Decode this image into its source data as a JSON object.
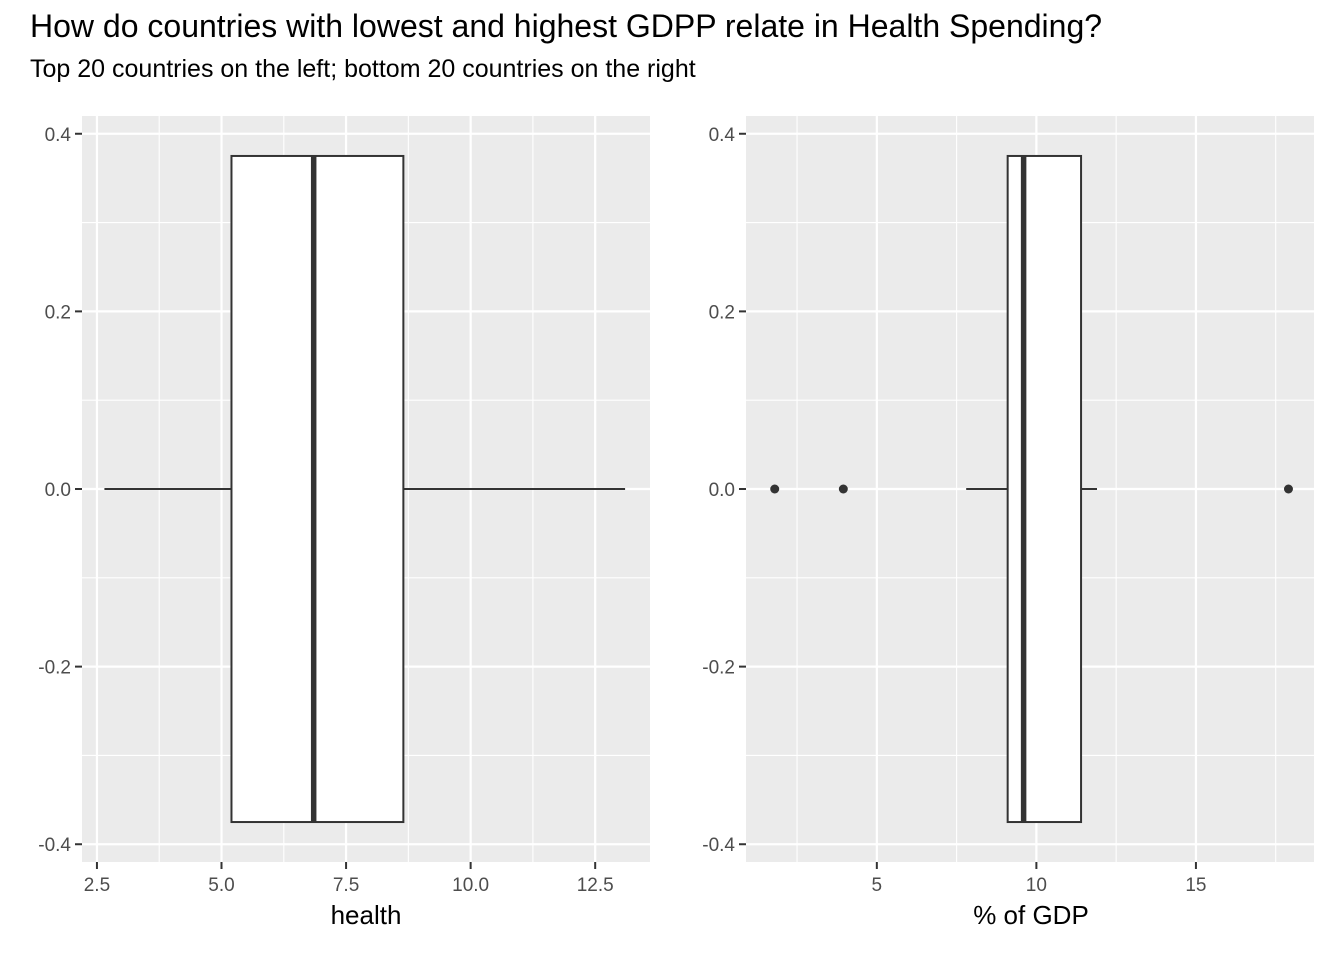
{
  "title": "How do countries with lowest and highest GDPP relate in Health Spending?",
  "subtitle": "Top 20 countries on the left; bottom 20 countries on the right",
  "colors": {
    "panel_background": "#ebebeb",
    "grid": "#ffffff",
    "box_fill": "#ffffff",
    "box_line": "#333333",
    "tick_text": "#4d4d4d"
  },
  "chart_data": [
    {
      "type": "boxplot",
      "xlabel": "health",
      "ylabel": "",
      "xlim": [
        2.2,
        13.6
      ],
      "ylim": [
        -0.42,
        0.42
      ],
      "x_ticks": [
        2.5,
        5.0,
        7.5,
        10.0,
        12.5
      ],
      "x_tick_labels": [
        "2.5",
        "5.0",
        "7.5",
        "10.0",
        "12.5"
      ],
      "y_ticks": [
        0.4,
        0.2,
        0.0,
        -0.2,
        -0.4
      ],
      "y_tick_labels": [
        "0.4",
        "0.2",
        "0.0",
        "-0.2",
        "-0.4"
      ],
      "grid": true,
      "box": {
        "whisker_low": 2.65,
        "q1": 5.2,
        "median": 6.85,
        "q3": 8.65,
        "whisker_high": 13.1,
        "y_low": -0.375,
        "y_high": 0.375,
        "y_center": 0.0
      },
      "outliers": []
    },
    {
      "type": "boxplot",
      "xlabel": "% of GDP",
      "ylabel": "",
      "xlim": [
        0.9,
        18.7
      ],
      "ylim": [
        -0.42,
        0.42
      ],
      "x_ticks": [
        5,
        10,
        15
      ],
      "x_tick_labels": [
        "5",
        "10",
        "15"
      ],
      "y_ticks": [
        0.4,
        0.2,
        0.0,
        -0.2,
        -0.4
      ],
      "y_tick_labels": [
        "0.4",
        "0.2",
        "0.0",
        "-0.2",
        "-0.4"
      ],
      "grid": true,
      "box": {
        "whisker_low": 7.8,
        "q1": 9.1,
        "median": 9.6,
        "q3": 11.4,
        "whisker_high": 11.9,
        "y_low": -0.375,
        "y_high": 0.375,
        "y_center": 0.0
      },
      "outliers": [
        {
          "x": 1.8,
          "y": 0.0
        },
        {
          "x": 3.95,
          "y": 0.0
        },
        {
          "x": 17.9,
          "y": 0.0
        }
      ]
    }
  ]
}
